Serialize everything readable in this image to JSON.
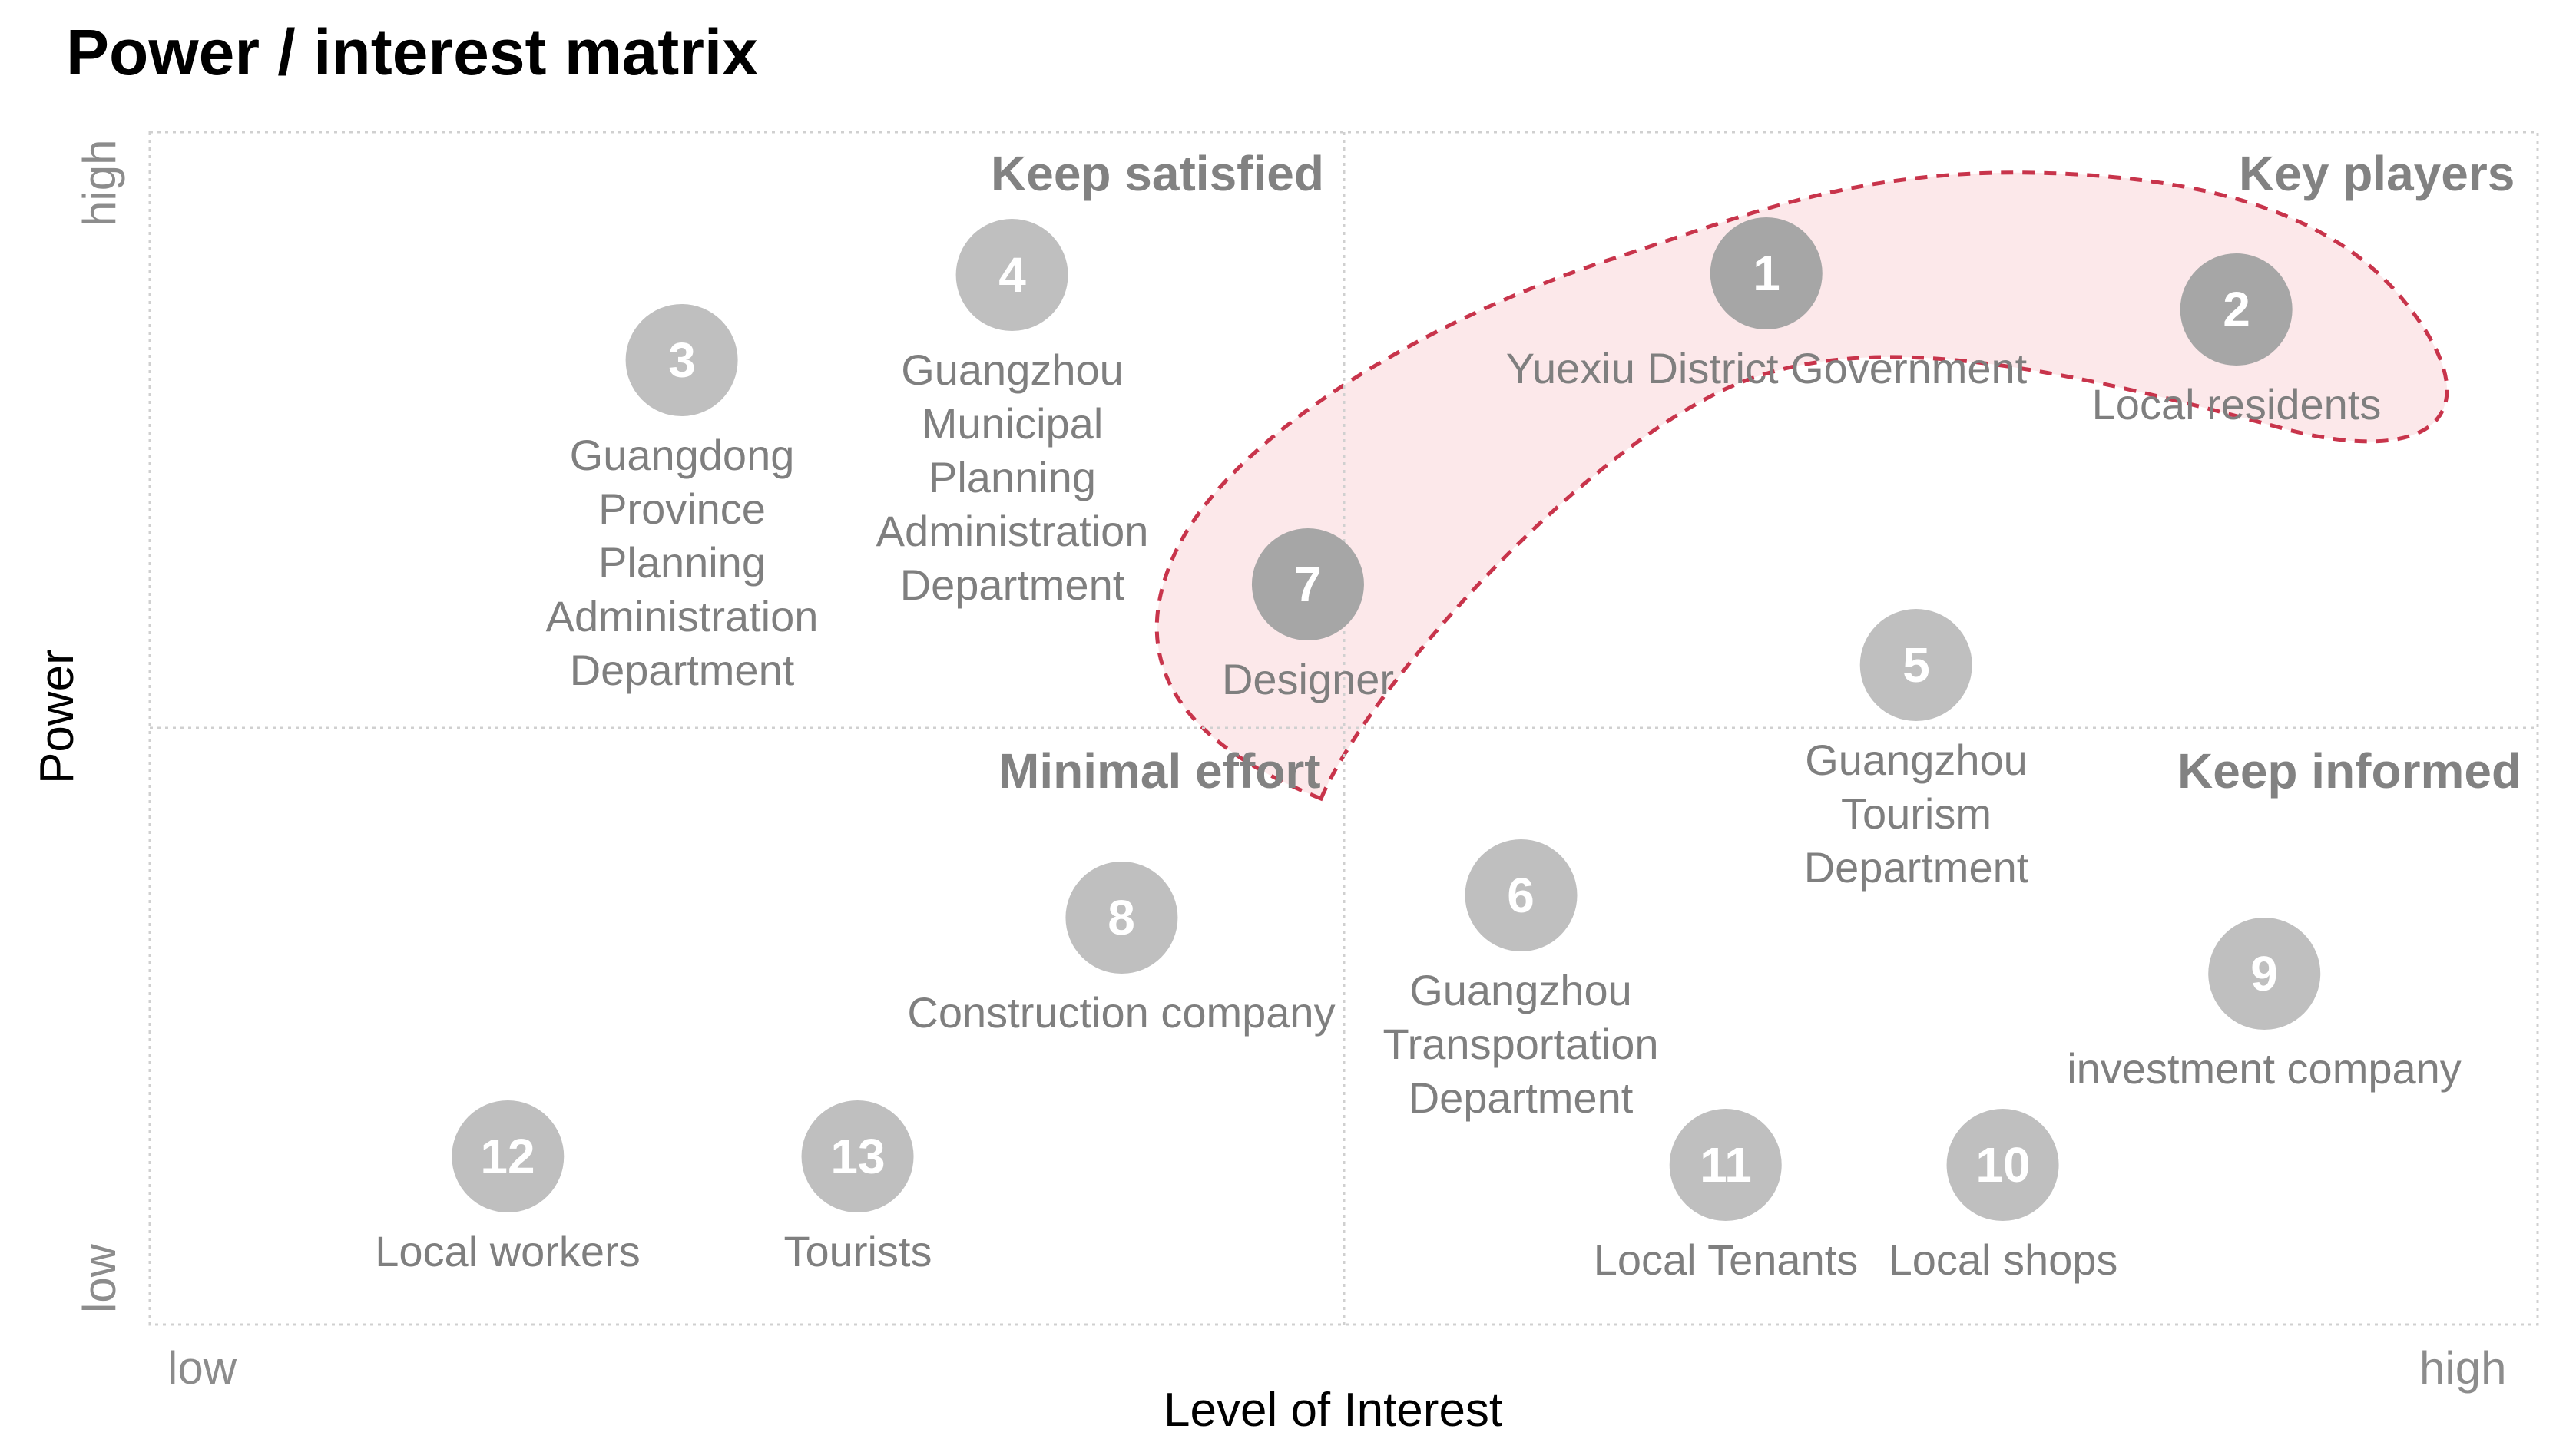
{
  "title": "Power / interest matrix",
  "axes": {
    "x_title": "Level of Interest",
    "x_low": "low",
    "x_high": "high",
    "y_title": "Power",
    "y_low": "low",
    "y_high": "high"
  },
  "quadrants": {
    "top_left": "Keep satisfied",
    "top_right": "Key players",
    "bottom_left": "Minimal effort",
    "bottom_right": "Keep informed"
  },
  "colors": {
    "highlight_fill": "#fce8ea",
    "highlight_stroke": "#c8344b",
    "badge_light": "#bfbfbf",
    "badge_dark": "#a6a6a6",
    "label_text": "#7f7f7f"
  },
  "stakeholders": [
    {
      "number": "1",
      "label": "Yuexiu District Government"
    },
    {
      "number": "2",
      "label": "Local residents"
    },
    {
      "number": "3",
      "label": "Guangdong\nProvince\nPlanning\nAdministration\nDepartment"
    },
    {
      "number": "4",
      "label": "Guangzhou\nMunicipal\nPlanning\nAdministration\nDepartment"
    },
    {
      "number": "5",
      "label": "Guangzhou\nTourism\nDepartment"
    },
    {
      "number": "6",
      "label": "Guangzhou\nTransportation\nDepartment"
    },
    {
      "number": "7",
      "label": "Designer"
    },
    {
      "number": "8",
      "label": "Construction company"
    },
    {
      "number": "9",
      "label": "investment company"
    },
    {
      "number": "10",
      "label": "Local shops"
    },
    {
      "number": "11",
      "label": "Local Tenants"
    },
    {
      "number": "12",
      "label": "Local workers"
    },
    {
      "number": "13",
      "label": "Tourists"
    }
  ]
}
